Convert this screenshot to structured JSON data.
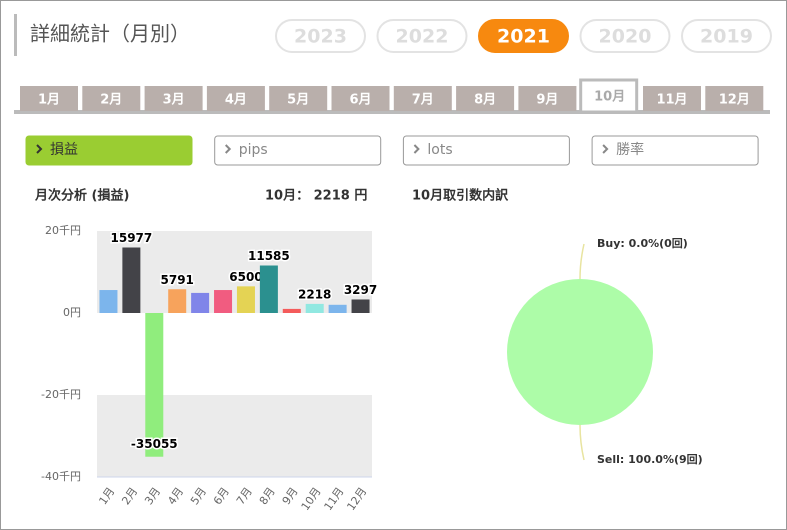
{
  "header": {
    "title": "詳細統計（月別）"
  },
  "years": {
    "items": [
      "2023",
      "2022",
      "2021",
      "2020",
      "2019"
    ],
    "selected": 2
  },
  "month_tabs": {
    "items": [
      "1月",
      "2月",
      "3月",
      "4月",
      "5月",
      "6月",
      "7月",
      "8月",
      "9月",
      "10月",
      "11月",
      "12月"
    ],
    "selected": 9
  },
  "metric_buttons": {
    "items": [
      "損益",
      "pips",
      "lots",
      "勝率"
    ],
    "selected": 0
  },
  "chart_data": [
    {
      "type": "bar",
      "title": "月次分析 (損益)",
      "subtitle": "10月： 2218 円",
      "categories": [
        "1月",
        "2月",
        "3月",
        "4月",
        "5月",
        "6月",
        "7月",
        "8月",
        "9月",
        "10月",
        "11月",
        "12月"
      ],
      "values": [
        5600,
        15977,
        -35055,
        5791,
        4900,
        5600,
        6500,
        11585,
        1000,
        2218,
        2000,
        3297
      ],
      "value_labels": [
        null,
        "15977",
        "-35055",
        "5791",
        null,
        null,
        "6500",
        "11585",
        null,
        "2218",
        null,
        "3297"
      ],
      "colors": [
        "#7cb5ec",
        "#434348",
        "#90ed7d",
        "#f7a35c",
        "#8085e9",
        "#f15c80",
        "#e4d354",
        "#2b908f",
        "#f45b5b",
        "#91e8e1",
        "#7cb5ec",
        "#434348"
      ],
      "ylim": [
        -40000,
        20000
      ],
      "yticks": [
        {
          "value": 20000,
          "label": "20千円"
        },
        {
          "value": 0,
          "label": "0円"
        },
        {
          "value": -20000,
          "label": "-20千円"
        },
        {
          "value": -40000,
          "label": "-40千円"
        }
      ]
    },
    {
      "type": "pie",
      "title": "10月取引数内訳",
      "categories": [
        "Buy",
        "Sell"
      ],
      "values": [
        0,
        100
      ],
      "value_labels": [
        "Buy: 0.0%(0回)",
        "Sell: 100.0%(9回)"
      ],
      "colors": [
        "#7cb5ec",
        "#adfca8"
      ]
    }
  ]
}
